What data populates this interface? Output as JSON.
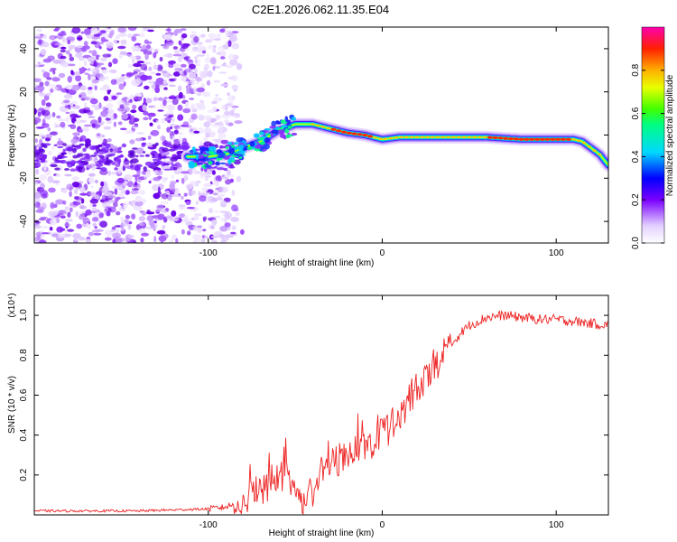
{
  "title": "C2E1.2026.062.11.35.E04",
  "chart_data": [
    {
      "type": "heatmap",
      "xlabel": "Height of straight line (km)",
      "ylabel": "Frequency (Hz)",
      "xlim": [
        -200,
        130
      ],
      "ylim": [
        -50,
        50
      ],
      "xticks": [
        -100,
        0,
        100
      ],
      "yticks": [
        -40,
        -20,
        0,
        20,
        40
      ],
      "colorbar": {
        "label": "Normalized spectral amplitude",
        "range": [
          0,
          1
        ],
        "ticks": [
          "0.0",
          "0.2",
          "0.4",
          "0.6",
          "0.8"
        ]
      },
      "ridge": {
        "x": [
          -200,
          -120,
          -100,
          -90,
          -80,
          -70,
          -60,
          -50,
          -40,
          -30,
          -20,
          -10,
          0,
          10,
          20,
          40,
          60,
          80,
          100,
          110,
          115,
          120,
          125,
          130
        ],
        "frequency": [
          -10,
          -10,
          -10,
          -9,
          -6,
          -3,
          2,
          5,
          5,
          3,
          1,
          0,
          -2,
          -1,
          -1,
          -1,
          -1,
          -2,
          -2,
          -2,
          -3,
          -6,
          -9,
          -14
        ]
      },
      "noise_region_x": [
        -200,
        -80
      ]
    },
    {
      "type": "line",
      "xlabel": "Height of straight line (km)",
      "ylabel": "SNR (10 * v/v)",
      "y_multiplier": "(x10⁴)",
      "xlim": [
        -200,
        130
      ],
      "ylim": [
        0,
        1.1
      ],
      "xticks": [
        -100,
        0,
        100
      ],
      "yticks": [
        0.2,
        0.4,
        0.6,
        0.8,
        1.0
      ],
      "series": [
        {
          "name": "SNR",
          "color": "#ee2222",
          "x": [
            -200,
            -180,
            -160,
            -140,
            -120,
            -100,
            -90,
            -80,
            -75,
            -70,
            -65,
            -60,
            -55,
            -50,
            -45,
            -40,
            -35,
            -30,
            -25,
            -20,
            -15,
            -10,
            -5,
            0,
            5,
            10,
            15,
            20,
            25,
            30,
            35,
            40,
            45,
            50,
            60,
            70,
            80,
            90,
            100,
            110,
            120,
            130
          ],
          "values": [
            0.02,
            0.02,
            0.02,
            0.02,
            0.025,
            0.03,
            0.04,
            0.07,
            0.1,
            0.12,
            0.16,
            0.2,
            0.22,
            0.1,
            0.08,
            0.12,
            0.22,
            0.25,
            0.28,
            0.3,
            0.33,
            0.35,
            0.38,
            0.42,
            0.45,
            0.5,
            0.56,
            0.62,
            0.68,
            0.74,
            0.8,
            0.86,
            0.91,
            0.95,
            0.99,
            1.0,
            0.99,
            0.98,
            0.98,
            0.97,
            0.96,
            0.95
          ]
        }
      ]
    }
  ]
}
